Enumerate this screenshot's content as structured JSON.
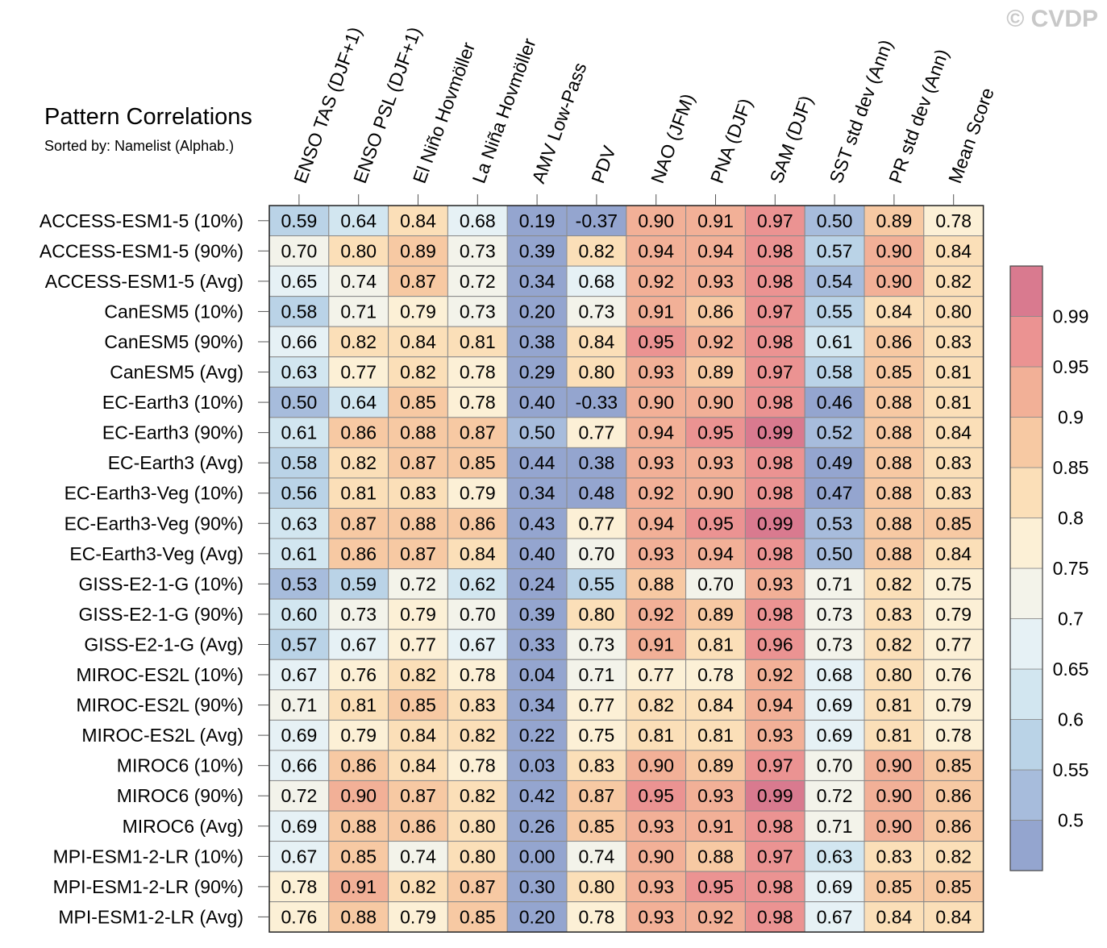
{
  "watermark": "© CVDP",
  "chart_data": {
    "type": "heatmap",
    "title": "Pattern Correlations",
    "subtitle": "Sorted by: Namelist (Alphab.)",
    "columns": [
      "ENSO TAS (DJF+1)",
      "ENSO PSL (DJF+1)",
      "El Niño Hovmöller",
      "La Niña Hovmöller",
      "AMV Low-Pass",
      "PDV",
      "NAO (JFM)",
      "PNA (DJF)",
      "SAM (DJF)",
      "SST std dev (Ann)",
      "PR std dev (Ann)",
      "Mean Score"
    ],
    "rows": [
      "ACCESS-ESM1-5 (10%)",
      "ACCESS-ESM1-5 (90%)",
      "ACCESS-ESM1-5 (Avg)",
      "CanESM5 (10%)",
      "CanESM5 (90%)",
      "CanESM5 (Avg)",
      "EC-Earth3 (10%)",
      "EC-Earth3 (90%)",
      "EC-Earth3 (Avg)",
      "EC-Earth3-Veg (10%)",
      "EC-Earth3-Veg (90%)",
      "EC-Earth3-Veg (Avg)",
      "GISS-E2-1-G (10%)",
      "GISS-E2-1-G (90%)",
      "GISS-E2-1-G (Avg)",
      "MIROC-ES2L (10%)",
      "MIROC-ES2L (90%)",
      "MIROC-ES2L (Avg)",
      "MIROC6 (10%)",
      "MIROC6 (90%)",
      "MIROC6 (Avg)",
      "MPI-ESM1-2-LR (10%)",
      "MPI-ESM1-2-LR (90%)",
      "MPI-ESM1-2-LR (Avg)"
    ],
    "values": [
      [
        "0.59",
        "0.64",
        "0.84",
        "0.68",
        "0.19",
        "-0.37",
        "0.90",
        "0.91",
        "0.97",
        "0.50",
        "0.89",
        "0.78"
      ],
      [
        "0.70",
        "0.80",
        "0.89",
        "0.73",
        "0.39",
        "0.82",
        "0.94",
        "0.94",
        "0.98",
        "0.57",
        "0.90",
        "0.84"
      ],
      [
        "0.65",
        "0.74",
        "0.87",
        "0.72",
        "0.34",
        "0.68",
        "0.92",
        "0.93",
        "0.98",
        "0.54",
        "0.90",
        "0.82"
      ],
      [
        "0.58",
        "0.71",
        "0.79",
        "0.73",
        "0.20",
        "0.73",
        "0.91",
        "0.86",
        "0.97",
        "0.55",
        "0.84",
        "0.80"
      ],
      [
        "0.66",
        "0.82",
        "0.84",
        "0.81",
        "0.38",
        "0.84",
        "0.95",
        "0.92",
        "0.98",
        "0.61",
        "0.86",
        "0.83"
      ],
      [
        "0.63",
        "0.77",
        "0.82",
        "0.78",
        "0.29",
        "0.80",
        "0.93",
        "0.89",
        "0.97",
        "0.58",
        "0.85",
        "0.81"
      ],
      [
        "0.50",
        "0.64",
        "0.85",
        "0.78",
        "0.40",
        "-0.33",
        "0.90",
        "0.90",
        "0.98",
        "0.46",
        "0.88",
        "0.81"
      ],
      [
        "0.61",
        "0.86",
        "0.88",
        "0.87",
        "0.50",
        "0.77",
        "0.94",
        "0.95",
        "0.99",
        "0.52",
        "0.88",
        "0.84"
      ],
      [
        "0.58",
        "0.82",
        "0.87",
        "0.85",
        "0.44",
        "0.38",
        "0.93",
        "0.93",
        "0.98",
        "0.49",
        "0.88",
        "0.83"
      ],
      [
        "0.56",
        "0.81",
        "0.83",
        "0.79",
        "0.34",
        "0.48",
        "0.92",
        "0.90",
        "0.98",
        "0.47",
        "0.88",
        "0.83"
      ],
      [
        "0.63",
        "0.87",
        "0.88",
        "0.86",
        "0.43",
        "0.77",
        "0.94",
        "0.95",
        "0.99",
        "0.53",
        "0.88",
        "0.85"
      ],
      [
        "0.61",
        "0.86",
        "0.87",
        "0.84",
        "0.40",
        "0.70",
        "0.93",
        "0.94",
        "0.98",
        "0.50",
        "0.88",
        "0.84"
      ],
      [
        "0.53",
        "0.59",
        "0.72",
        "0.62",
        "0.24",
        "0.55",
        "0.88",
        "0.70",
        "0.93",
        "0.71",
        "0.82",
        "0.75"
      ],
      [
        "0.60",
        "0.73",
        "0.79",
        "0.70",
        "0.39",
        "0.80",
        "0.92",
        "0.89",
        "0.98",
        "0.73",
        "0.83",
        "0.79"
      ],
      [
        "0.57",
        "0.67",
        "0.77",
        "0.67",
        "0.33",
        "0.73",
        "0.91",
        "0.81",
        "0.96",
        "0.73",
        "0.82",
        "0.77"
      ],
      [
        "0.67",
        "0.76",
        "0.82",
        "0.78",
        "0.04",
        "0.71",
        "0.77",
        "0.78",
        "0.92",
        "0.68",
        "0.80",
        "0.76"
      ],
      [
        "0.71",
        "0.81",
        "0.85",
        "0.83",
        "0.34",
        "0.77",
        "0.82",
        "0.84",
        "0.94",
        "0.69",
        "0.81",
        "0.79"
      ],
      [
        "0.69",
        "0.79",
        "0.84",
        "0.82",
        "0.22",
        "0.75",
        "0.81",
        "0.81",
        "0.93",
        "0.69",
        "0.81",
        "0.78"
      ],
      [
        "0.66",
        "0.86",
        "0.84",
        "0.78",
        "0.03",
        "0.83",
        "0.90",
        "0.89",
        "0.97",
        "0.70",
        "0.90",
        "0.85"
      ],
      [
        "0.72",
        "0.90",
        "0.87",
        "0.82",
        "0.42",
        "0.87",
        "0.95",
        "0.93",
        "0.99",
        "0.72",
        "0.90",
        "0.86"
      ],
      [
        "0.69",
        "0.88",
        "0.86",
        "0.80",
        "0.26",
        "0.85",
        "0.93",
        "0.91",
        "0.98",
        "0.71",
        "0.90",
        "0.86"
      ],
      [
        "0.67",
        "0.85",
        "0.74",
        "0.80",
        "0.00",
        "0.74",
        "0.90",
        "0.88",
        "0.97",
        "0.63",
        "0.83",
        "0.82"
      ],
      [
        "0.78",
        "0.91",
        "0.82",
        "0.87",
        "0.30",
        "0.80",
        "0.93",
        "0.95",
        "0.98",
        "0.69",
        "0.85",
        "0.85"
      ],
      [
        "0.76",
        "0.88",
        "0.79",
        "0.85",
        "0.20",
        "0.78",
        "0.93",
        "0.92",
        "0.98",
        "0.67",
        "0.84",
        "0.84"
      ]
    ],
    "colorbar": {
      "levels": [
        "0.5",
        "0.55",
        "0.6",
        "0.65",
        "0.7",
        "0.75",
        "0.8",
        "0.85",
        "0.9",
        "0.95",
        "0.99"
      ],
      "colors": [
        "#94a5cf",
        "#a7bcdc",
        "#bad3e7",
        "#d2e6f0",
        "#e6f1f5",
        "#f3f3ea",
        "#fcf0d6",
        "#fbdfb8",
        "#f7c9a3",
        "#f2b097",
        "#eb9392",
        "#d97a8f"
      ]
    }
  }
}
